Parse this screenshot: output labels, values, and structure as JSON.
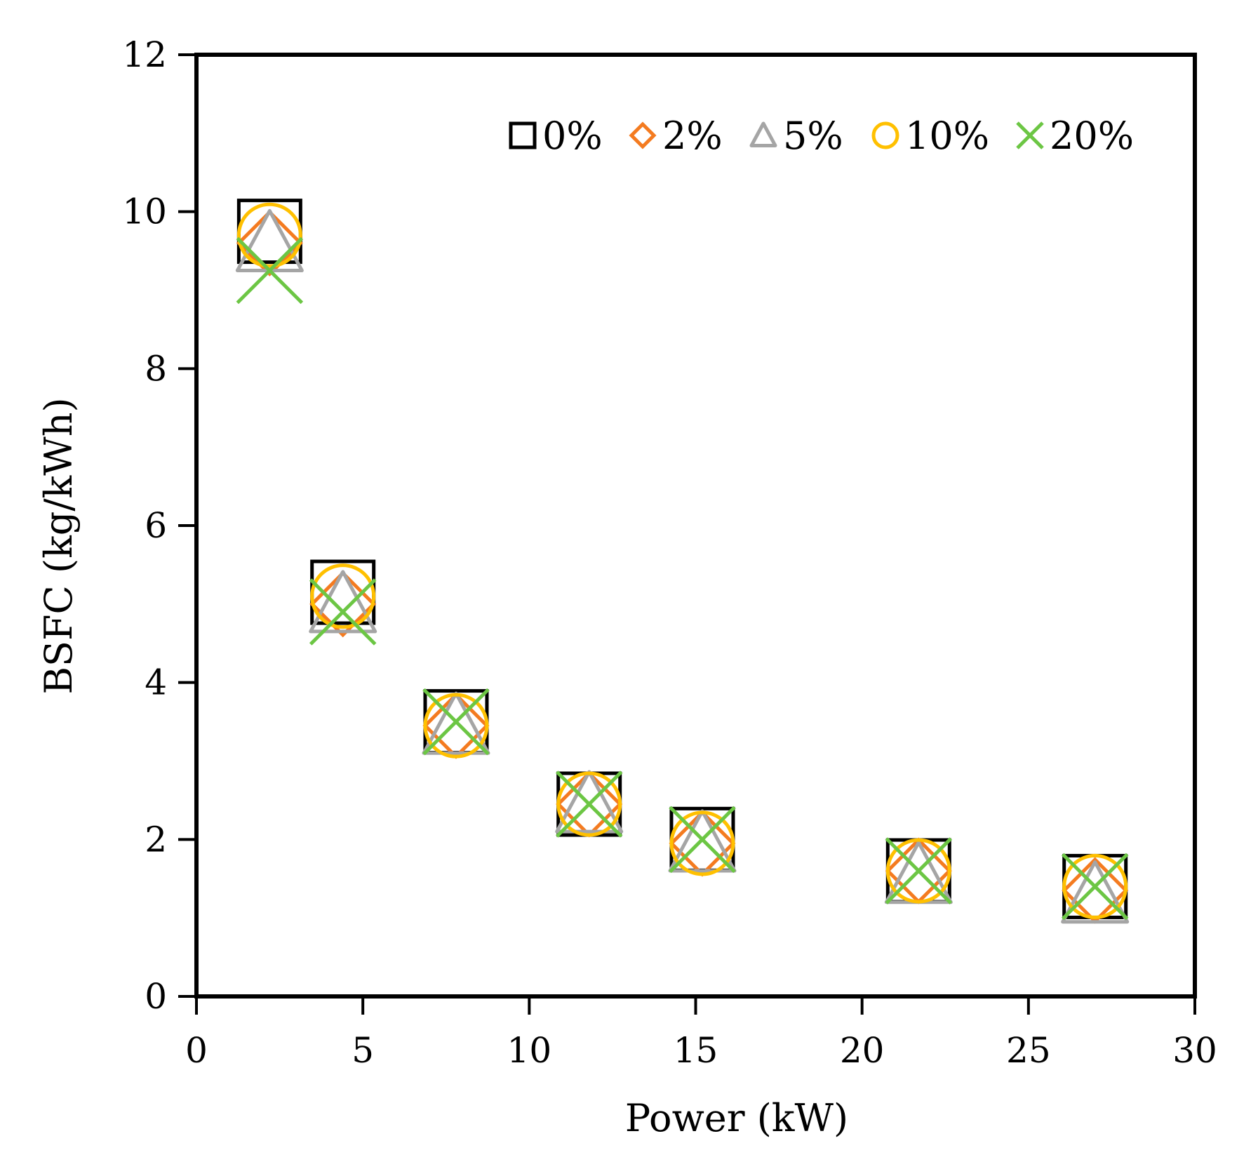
{
  "chart_data": {
    "type": "scatter",
    "title": "",
    "xlabel": "Power (kW)",
    "ylabel": "BSFC (kg/kWh)",
    "xlim": [
      0,
      30
    ],
    "ylim": [
      0,
      12
    ],
    "xticks": [
      0,
      5,
      10,
      15,
      20,
      25,
      30
    ],
    "yticks": [
      0,
      2,
      4,
      6,
      8,
      10,
      12
    ],
    "xtick_labels": [
      "0",
      "5",
      "10",
      "15",
      "20",
      "25",
      "30"
    ],
    "ytick_labels": [
      "0",
      "2",
      "4",
      "6",
      "8",
      "10",
      "12"
    ],
    "grid": false,
    "legend_position": "top-right",
    "series": [
      {
        "name": "0%",
        "marker": "square",
        "color": "#000000",
        "x": [
          2.2,
          4.4,
          7.8,
          11.8,
          15.2,
          21.7,
          27.0
        ],
        "y": [
          9.75,
          5.15,
          3.5,
          2.45,
          2.0,
          1.6,
          1.4
        ]
      },
      {
        "name": "2%",
        "marker": "diamond",
        "color": "#f47b20",
        "x": [
          2.2,
          4.4,
          7.8,
          11.8,
          15.2,
          21.7,
          27.0
        ],
        "y": [
          9.6,
          5.0,
          3.45,
          2.45,
          1.95,
          1.6,
          1.35
        ]
      },
      {
        "name": "5%",
        "marker": "triangle",
        "color": "#a5a5a5",
        "x": [
          2.2,
          4.4,
          7.8,
          11.8,
          15.2,
          21.7,
          27.0
        ],
        "y": [
          9.6,
          5.0,
          3.45,
          2.45,
          1.95,
          1.55,
          1.3
        ]
      },
      {
        "name": "10%",
        "marker": "circle",
        "color": "#ffc000",
        "x": [
          2.2,
          4.4,
          7.8,
          11.8,
          15.2,
          21.7,
          27.0
        ],
        "y": [
          9.7,
          5.1,
          3.45,
          2.45,
          1.95,
          1.6,
          1.4
        ]
      },
      {
        "name": "20%",
        "marker": "x",
        "color": "#6cc644",
        "x": [
          2.2,
          4.4,
          7.8,
          11.8,
          15.2,
          21.7,
          27.0
        ],
        "y": [
          9.25,
          4.9,
          3.5,
          2.45,
          2.0,
          1.6,
          1.4
        ]
      }
    ]
  }
}
